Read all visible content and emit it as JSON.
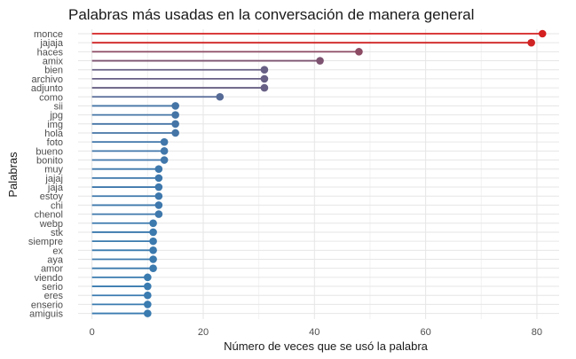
{
  "chart_data": {
    "type": "lollipop",
    "title": "Palabras más usadas en la conversación de manera general",
    "xlabel": "Número de veces que se usó la palabra",
    "ylabel": "Palabras",
    "xlim": [
      -2.5,
      84
    ],
    "x_ticks": [
      0,
      20,
      40,
      60,
      80
    ],
    "grid": true,
    "color_scale": {
      "low": "#3a7bb0",
      "high": "#d42020",
      "min": 10,
      "max": 81
    },
    "categories": [
      "monce",
      "jajaja",
      "haces",
      "amix",
      "bien",
      "archivo",
      "adjunto",
      "como",
      "sii",
      "jpg",
      "img",
      "hola",
      "foto",
      "bueno",
      "bonito",
      "muy",
      "jajaj",
      "jaja",
      "estoy",
      "chi",
      "chenol",
      "webp",
      "stk",
      "siempre",
      "ex",
      "aya",
      "amor",
      "viendo",
      "serio",
      "eres",
      "enserio",
      "amiguis"
    ],
    "values": [
      81,
      79,
      48,
      41,
      31,
      31,
      31,
      23,
      15,
      15,
      15,
      15,
      13,
      13,
      13,
      12,
      12,
      12,
      12,
      12,
      12,
      11,
      11,
      11,
      11,
      11,
      11,
      10,
      10,
      10,
      10,
      10
    ]
  }
}
